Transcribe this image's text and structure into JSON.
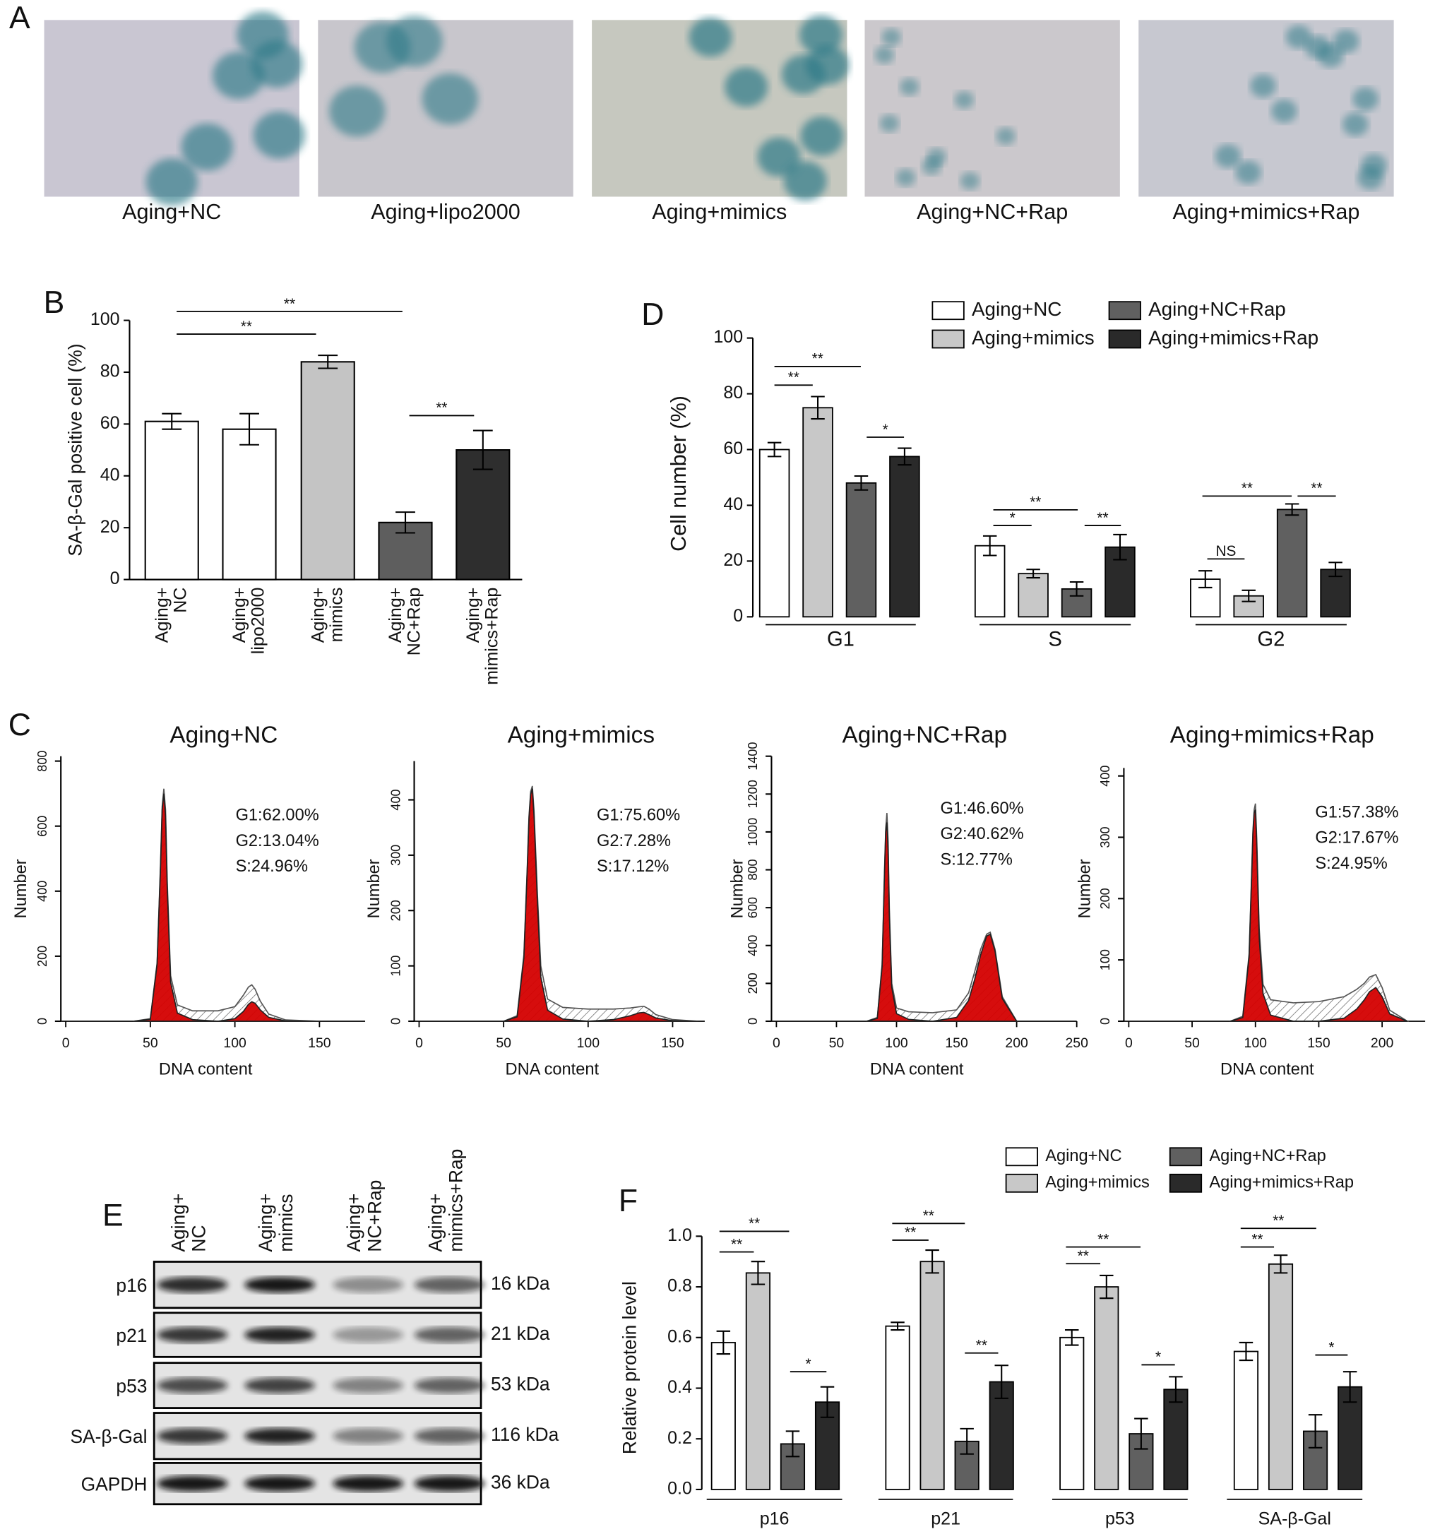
{
  "panel_labels": [
    "A",
    "B",
    "C",
    "D",
    "E",
    "F"
  ],
  "images": {
    "labels": [
      "Aging+NC",
      "Aging+lipo2000",
      "Aging+mimics",
      "Aging+NC+Rap",
      "Aging+mimics+Rap"
    ]
  },
  "chart_data": [
    {
      "type": "bar",
      "ylabel": "SA-β-Gal positive cell (%)",
      "categories": [
        [
          "Aging+",
          "NC"
        ],
        [
          "Aging+",
          "lipo2000"
        ],
        [
          "Aging+",
          "mimics"
        ],
        [
          "Aging+",
          "NC+Rap"
        ],
        [
          "Aging+",
          "mimics+Rap"
        ]
      ],
      "values": [
        61,
        58,
        84,
        22,
        50
      ],
      "errors": [
        3,
        6,
        2.5,
        4,
        7.5
      ],
      "colors": [
        "#ffffff",
        "#ffffff",
        "#c4c4c4",
        "#5e5e5e",
        "#2e2e2e"
      ],
      "ylim": [
        0,
        100
      ],
      "yticks": [
        0,
        20,
        40,
        60,
        80,
        100
      ],
      "significance": [
        "**",
        "**",
        "**"
      ]
    },
    {
      "type": "grouped_bar",
      "ylabel": "Cell number (%)",
      "categories": [
        "G1",
        "S",
        "G2"
      ],
      "series": [
        {
          "name": "Aging+NC",
          "color": "#ffffff",
          "values": [
            60,
            25.5,
            13.5
          ],
          "errors": [
            2.5,
            3.5,
            3
          ]
        },
        {
          "name": "Aging+mimics",
          "color": "#c8c8c8",
          "values": [
            75,
            15.5,
            7.5
          ],
          "errors": [
            4,
            1.5,
            2
          ]
        },
        {
          "name": "Aging+NC+Rap",
          "color": "#606060",
          "values": [
            48,
            10,
            38.5
          ],
          "errors": [
            2.5,
            2.5,
            2
          ]
        },
        {
          "name": "Aging+mimics+Rap",
          "color": "#2a2a2a",
          "values": [
            57.5,
            25,
            17
          ],
          "errors": [
            3,
            4.5,
            2.5
          ]
        }
      ],
      "ylim": [
        0,
        100
      ],
      "yticks": [
        0,
        20,
        40,
        60,
        80,
        100
      ],
      "significance": [
        "**",
        "**",
        "*",
        "*",
        "**",
        "**",
        "**",
        "NS",
        "**"
      ]
    },
    {
      "type": "histogram_fit",
      "title": "Aging+NC",
      "xlabel": "DNA content",
      "ylabel": "Number",
      "annotations": [
        "G1:62.00%",
        "G2:13.04%",
        "S:24.96%"
      ],
      "xlim": [
        0,
        177
      ],
      "xticks": [
        0,
        50,
        100,
        150
      ],
      "ylim": [
        0,
        815
      ],
      "yticks": [
        0,
        200,
        400,
        600,
        800
      ],
      "x": [
        40,
        50,
        54,
        56,
        57,
        58,
        59,
        60,
        62,
        66,
        75,
        90,
        100,
        105,
        108,
        110,
        112,
        115,
        120,
        130,
        150
      ],
      "series": [
        {
          "color": "#555555",
          "values": [
            0,
            8,
            180,
            480,
            660,
            715,
            650,
            430,
            140,
            50,
            32,
            32,
            45,
            80,
            105,
            112,
            98,
            62,
            22,
            4,
            0
          ]
        },
        {
          "color": "#d40000",
          "values": [
            0,
            6,
            175,
            470,
            650,
            700,
            630,
            410,
            120,
            25,
            5,
            0,
            0,
            0,
            0,
            0,
            0,
            0,
            0,
            0,
            0
          ]
        },
        {
          "color": "#d40000",
          "values": [
            0,
            0,
            0,
            0,
            0,
            0,
            0,
            0,
            0,
            0,
            0,
            0,
            8,
            30,
            52,
            60,
            55,
            35,
            12,
            1,
            0
          ]
        }
      ]
    },
    {
      "type": "histogram_fit",
      "title": "Aging+mimics",
      "xlabel": "DNA content",
      "ylabel": "Number",
      "annotations": [
        "G1:75.60%",
        "G2:7.28%",
        "S:17.12%"
      ],
      "xlim": [
        0,
        169
      ],
      "xticks": [
        0,
        50,
        100,
        150
      ],
      "ylim": [
        0,
        470
      ],
      "yticks": [
        0,
        100,
        200,
        300,
        400
      ],
      "x": [
        50,
        58,
        62,
        64,
        65,
        66,
        67,
        68,
        70,
        72,
        76,
        85,
        100,
        115,
        125,
        130,
        133,
        136,
        140,
        150,
        165
      ],
      "series": [
        {
          "color": "#555555",
          "values": [
            0,
            10,
            120,
            280,
            370,
            415,
            425,
            380,
            230,
            100,
            40,
            25,
            22,
            22,
            24,
            26,
            27,
            22,
            12,
            3,
            0
          ]
        },
        {
          "color": "#d40000",
          "values": [
            0,
            8,
            115,
            275,
            365,
            410,
            420,
            370,
            215,
            80,
            20,
            4,
            0,
            0,
            0,
            0,
            0,
            0,
            0,
            0,
            0
          ]
        },
        {
          "color": "#d40000",
          "values": [
            0,
            0,
            0,
            0,
            0,
            0,
            0,
            0,
            0,
            0,
            0,
            0,
            0,
            3,
            10,
            15,
            16,
            12,
            6,
            1,
            0
          ]
        }
      ]
    },
    {
      "type": "histogram_fit",
      "title": "Aging+NC+Rap",
      "xlabel": "DNA content",
      "ylabel": "Number",
      "annotations": [
        "G1:46.60%",
        "G2:40.62%",
        "S:12.77%"
      ],
      "xlim": [
        0,
        250
      ],
      "xticks": [
        0,
        50,
        100,
        150,
        200,
        250
      ],
      "ylim": [
        0,
        1400
      ],
      "yticks": [
        0,
        200,
        400,
        600,
        800,
        1000,
        1200,
        1400
      ],
      "x": [
        75,
        84,
        88,
        90,
        91,
        92,
        93,
        94,
        96,
        100,
        110,
        130,
        150,
        160,
        165,
        170,
        175,
        178,
        182,
        188,
        200
      ],
      "series": [
        {
          "color": "#555555",
          "values": [
            0,
            20,
            300,
            800,
            1020,
            1100,
            950,
            600,
            200,
            70,
            50,
            45,
            60,
            150,
            260,
            380,
            460,
            470,
            380,
            130,
            0
          ]
        },
        {
          "color": "#d40000",
          "values": [
            0,
            15,
            290,
            780,
            1000,
            1050,
            900,
            560,
            180,
            40,
            10,
            0,
            0,
            0,
            0,
            0,
            0,
            0,
            0,
            0,
            0
          ]
        },
        {
          "color": "#d40000",
          "values": [
            0,
            0,
            0,
            0,
            0,
            0,
            0,
            0,
            0,
            0,
            0,
            0,
            20,
            110,
            220,
            350,
            450,
            460,
            370,
            120,
            0
          ]
        }
      ]
    },
    {
      "type": "histogram_fit",
      "title": "Aging+mimics+Rap",
      "xlabel": "DNA content",
      "ylabel": "Number",
      "annotations": [
        "G1:57.38%",
        "G2:17.67%",
        "S:24.95%"
      ],
      "xlim": [
        0,
        234
      ],
      "xticks": [
        0,
        50,
        100,
        150,
        200
      ],
      "ylim": [
        0,
        413
      ],
      "yticks": [
        0,
        100,
        200,
        300,
        400
      ],
      "x": [
        80,
        90,
        95,
        97,
        98,
        99,
        100,
        101,
        103,
        106,
        112,
        130,
        150,
        170,
        180,
        186,
        190,
        195,
        200,
        206,
        220
      ],
      "series": [
        {
          "color": "#555555",
          "values": [
            0,
            8,
            110,
            240,
            310,
            345,
            355,
            300,
            150,
            60,
            35,
            30,
            32,
            40,
            52,
            62,
            72,
            76,
            55,
            18,
            0
          ]
        },
        {
          "color": "#d40000",
          "values": [
            0,
            6,
            105,
            235,
            305,
            340,
            345,
            290,
            135,
            45,
            10,
            0,
            0,
            0,
            0,
            0,
            0,
            0,
            0,
            0,
            0
          ]
        },
        {
          "color": "#d40000",
          "values": [
            0,
            0,
            0,
            0,
            0,
            0,
            0,
            0,
            0,
            0,
            0,
            0,
            0,
            5,
            20,
            35,
            48,
            55,
            40,
            12,
            0
          ]
        }
      ]
    },
    {
      "type": "grouped_bar",
      "ylabel": "Relative protein level",
      "categories": [
        "p16",
        "p21",
        "p53",
        "SA-β-Gal"
      ],
      "series": [
        {
          "name": "Aging+NC",
          "color": "#ffffff",
          "values": [
            0.58,
            0.645,
            0.6,
            0.545
          ],
          "errors": [
            0.045,
            0.015,
            0.03,
            0.035
          ]
        },
        {
          "name": "Aging+mimics",
          "color": "#c8c8c8",
          "values": [
            0.855,
            0.9,
            0.8,
            0.89
          ],
          "errors": [
            0.045,
            0.045,
            0.045,
            0.035
          ]
        },
        {
          "name": "Aging+NC+Rap",
          "color": "#606060",
          "values": [
            0.18,
            0.19,
            0.22,
            0.23
          ],
          "errors": [
            0.05,
            0.05,
            0.06,
            0.065
          ]
        },
        {
          "name": "Aging+mimics+Rap",
          "color": "#2a2a2a",
          "values": [
            0.345,
            0.425,
            0.395,
            0.405
          ],
          "errors": [
            0.06,
            0.065,
            0.05,
            0.06
          ]
        }
      ],
      "ylim": [
        0,
        1
      ],
      "yticks": [
        {
          "value": 0,
          "label": "0.0"
        },
        0.2,
        0.4,
        0.6,
        0.8,
        {
          "value": 1,
          "label": "1.0"
        }
      ],
      "significance": [
        "**",
        "**",
        "*",
        "**",
        "**",
        "**",
        "**",
        "**",
        "*",
        "**",
        "**",
        "*"
      ]
    }
  ],
  "blot": {
    "columns": [
      [
        "Aging+",
        "NC"
      ],
      [
        "Aging+",
        "mimics"
      ],
      [
        "Aging+",
        "NC+Rap"
      ],
      [
        "Aging+",
        "mimics+Rap"
      ]
    ],
    "rows": [
      {
        "protein": "p16",
        "size": "16 kDa"
      },
      {
        "protein": "p21",
        "size": "21 kDa"
      },
      {
        "protein": "p53",
        "size": "53 kDa"
      },
      {
        "protein": "SA-β-Gal",
        "size": "116 kDa"
      },
      {
        "protein": "GAPDH",
        "size": "36 kDa"
      }
    ]
  }
}
